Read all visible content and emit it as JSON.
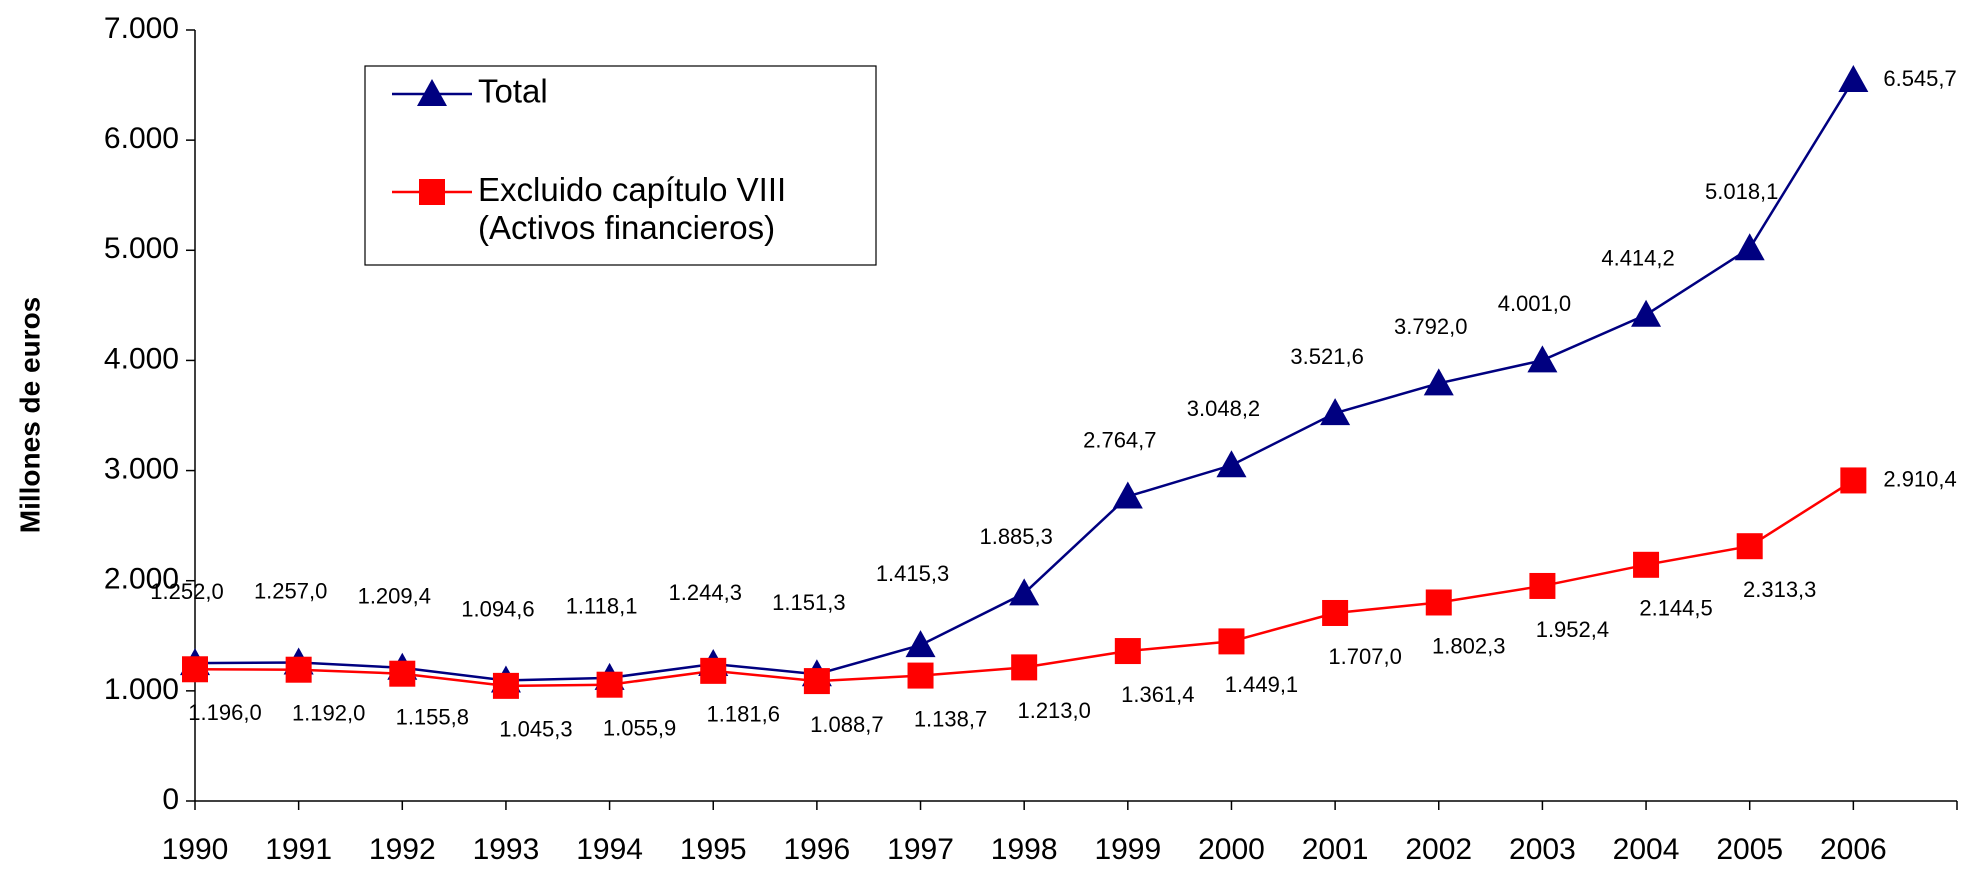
{
  "chart_data": {
    "type": "line",
    "y_label": "Millones de euros",
    "categories": [
      "1990",
      "1991",
      "1992",
      "1993",
      "1994",
      "1995",
      "1996",
      "1997",
      "1998",
      "1999",
      "2000",
      "2001",
      "2002",
      "2003",
      "2004",
      "2005",
      "2006"
    ],
    "series": [
      {
        "name": "Total",
        "color": "#000080",
        "marker": "triangle",
        "values": [
          1252.0,
          1257.0,
          1209.4,
          1094.6,
          1118.1,
          1244.3,
          1151.3,
          1415.3,
          1885.3,
          2764.7,
          3048.2,
          3521.6,
          3792.0,
          4001.0,
          4414.2,
          5018.1,
          6545.7
        ],
        "value_labels": [
          "1.252,0",
          "1.257,0",
          "1.209,4",
          "1.094,6",
          "1.118,1",
          "1.244,3",
          "1.151,3",
          "1.415,3",
          "1.885,3",
          "2.764,7",
          "3.048,2",
          "3.521,6",
          "3.792,0",
          "4.001,0",
          "4.414,2",
          "5.018,1",
          "6.545,7"
        ]
      },
      {
        "name": "Excluido capítulo VIII\n(Activos financieros)",
        "color": "#ff0000",
        "marker": "square",
        "values": [
          1196.0,
          1192.0,
          1155.8,
          1045.3,
          1055.9,
          1181.6,
          1088.7,
          1138.7,
          1213.0,
          1361.4,
          1449.1,
          1707.0,
          1802.3,
          1952.4,
          2144.5,
          2313.3,
          2910.4
        ],
        "value_labels": [
          "1.196,0",
          "1.192,0",
          "1.155,8",
          "1.045,3",
          "1.055,9",
          "1.181,6",
          "1.088,7",
          "1.138,7",
          "1.213,0",
          "1.361,4",
          "1.449,1",
          "1.707,0",
          "1.802,3",
          "1.952,4",
          "2.144,5",
          "2.313,3",
          "2.910,4"
        ]
      }
    ],
    "ylim": [
      0,
      7000
    ],
    "yticks": [
      0,
      {
        "value": 1000,
        "label": "1.000"
      },
      {
        "value": 2000,
        "label": "2.000"
      },
      {
        "value": 3000,
        "label": "3.000"
      },
      {
        "value": 4000,
        "label": "4.000"
      },
      {
        "value": 5000,
        "label": "5.000"
      },
      {
        "value": 6000,
        "label": "6.000"
      },
      {
        "value": 7000,
        "label": "7.000"
      }
    ],
    "grid": false,
    "legend": "top-left"
  }
}
